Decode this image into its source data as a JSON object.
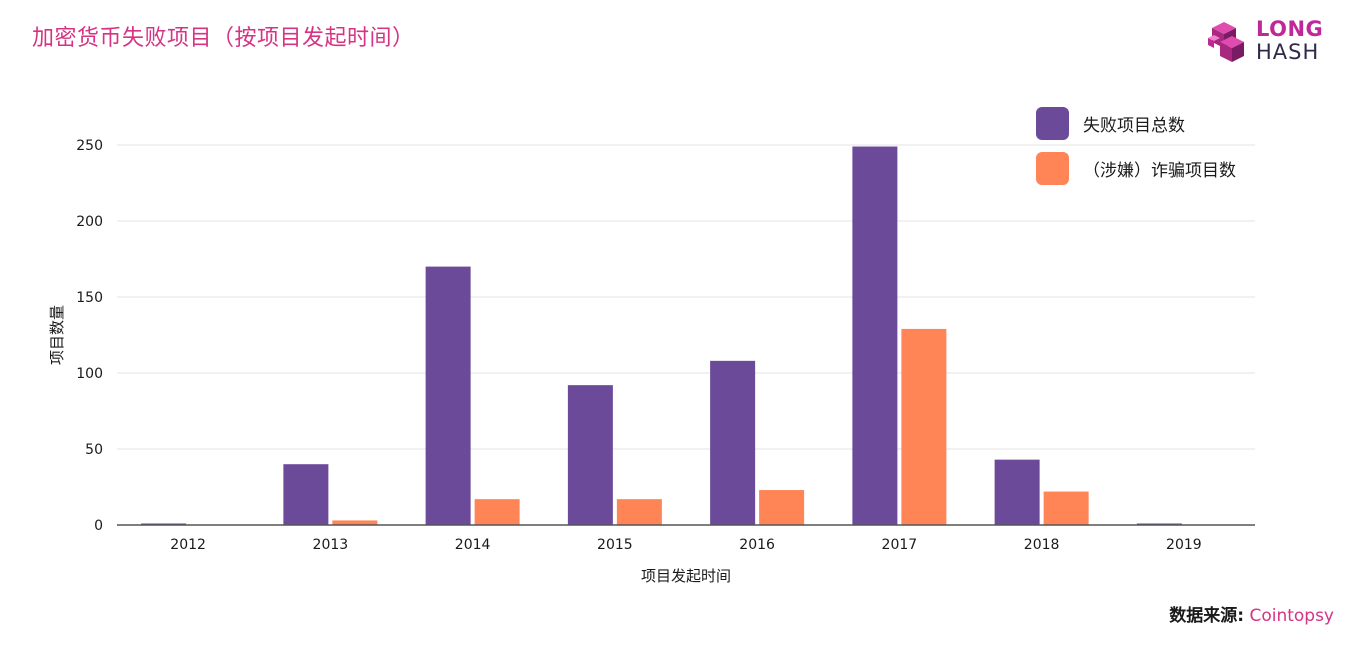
{
  "title": "加密货币失败项目（按项目发起时间）",
  "logo": {
    "line1": "LONG",
    "line2": "HASH",
    "hash_glyph": "#"
  },
  "source": {
    "label": "数据来源:",
    "value": "Cointopsy"
  },
  "colors": {
    "total": "#6b4a9a",
    "fraud": "#ff8557",
    "title": "#d63384"
  },
  "chart_data": {
    "type": "bar",
    "categories": [
      "2012",
      "2013",
      "2014",
      "2015",
      "2016",
      "2017",
      "2018",
      "2019"
    ],
    "series": [
      {
        "name": "失败项目总数",
        "values": [
          1,
          40,
          170,
          92,
          108,
          249,
          43,
          1
        ]
      },
      {
        "name": "（涉嫌）诈骗项目数",
        "values": [
          0,
          3,
          17,
          17,
          23,
          129,
          22,
          0
        ]
      }
    ],
    "xlabel": "项目发起时间",
    "ylabel": "项目数量",
    "ylim": [
      0,
      250
    ],
    "yticks": [
      0,
      50,
      100,
      150,
      200,
      250
    ],
    "grid": true,
    "legend_position": "top-right"
  }
}
